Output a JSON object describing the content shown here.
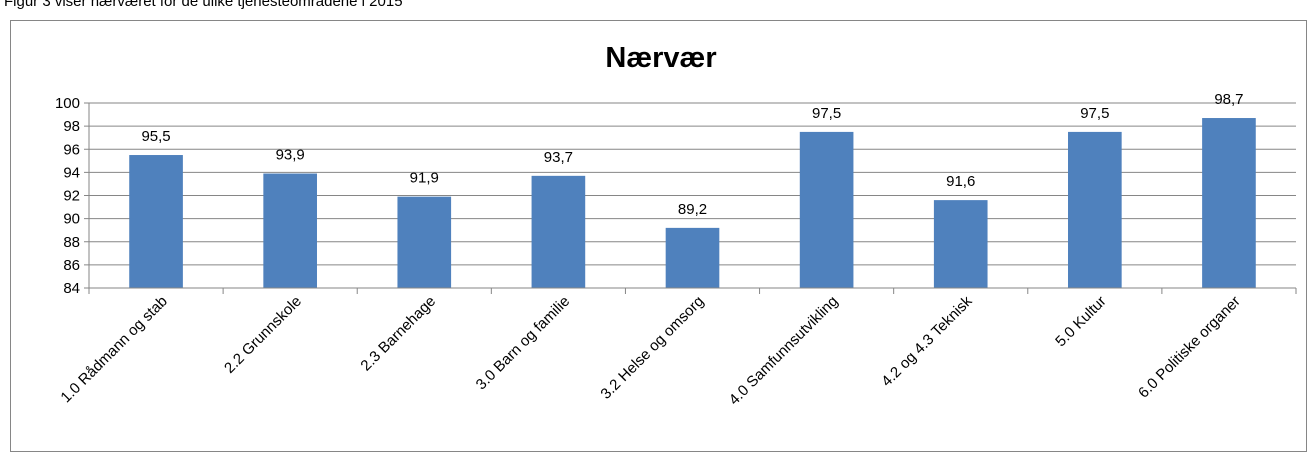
{
  "caption": "Figur 3 viser nærværet for de ulike tjenesteområdene i 2015",
  "chart_data": {
    "type": "bar",
    "title": "Nærvær",
    "categories": [
      "1.0 Rådmann og stab",
      "2.2 Grunnskole",
      "2.3 Barnehage",
      "3.0 Barn og familie",
      "3.2 Helse og omsorg",
      "4.0 Samfunnsutvikling",
      "4.2 og 4.3 Teknisk",
      "5.0 Kultur",
      "6.0 Politiske organer"
    ],
    "values": [
      95.5,
      93.9,
      91.9,
      93.7,
      89.2,
      97.5,
      91.6,
      97.5,
      98.7
    ],
    "data_labels": [
      "95,5",
      "93,9",
      "91,9",
      "93,7",
      "89,2",
      "97,5",
      "91,6",
      "97,5",
      "98,7"
    ],
    "ylim": [
      84,
      100
    ],
    "yticks": [
      84,
      86,
      88,
      90,
      92,
      94,
      96,
      98,
      100
    ],
    "grid": true,
    "bar_color": "#4F81BD",
    "grid_color": "#868686",
    "xlabel": "",
    "ylabel": ""
  }
}
